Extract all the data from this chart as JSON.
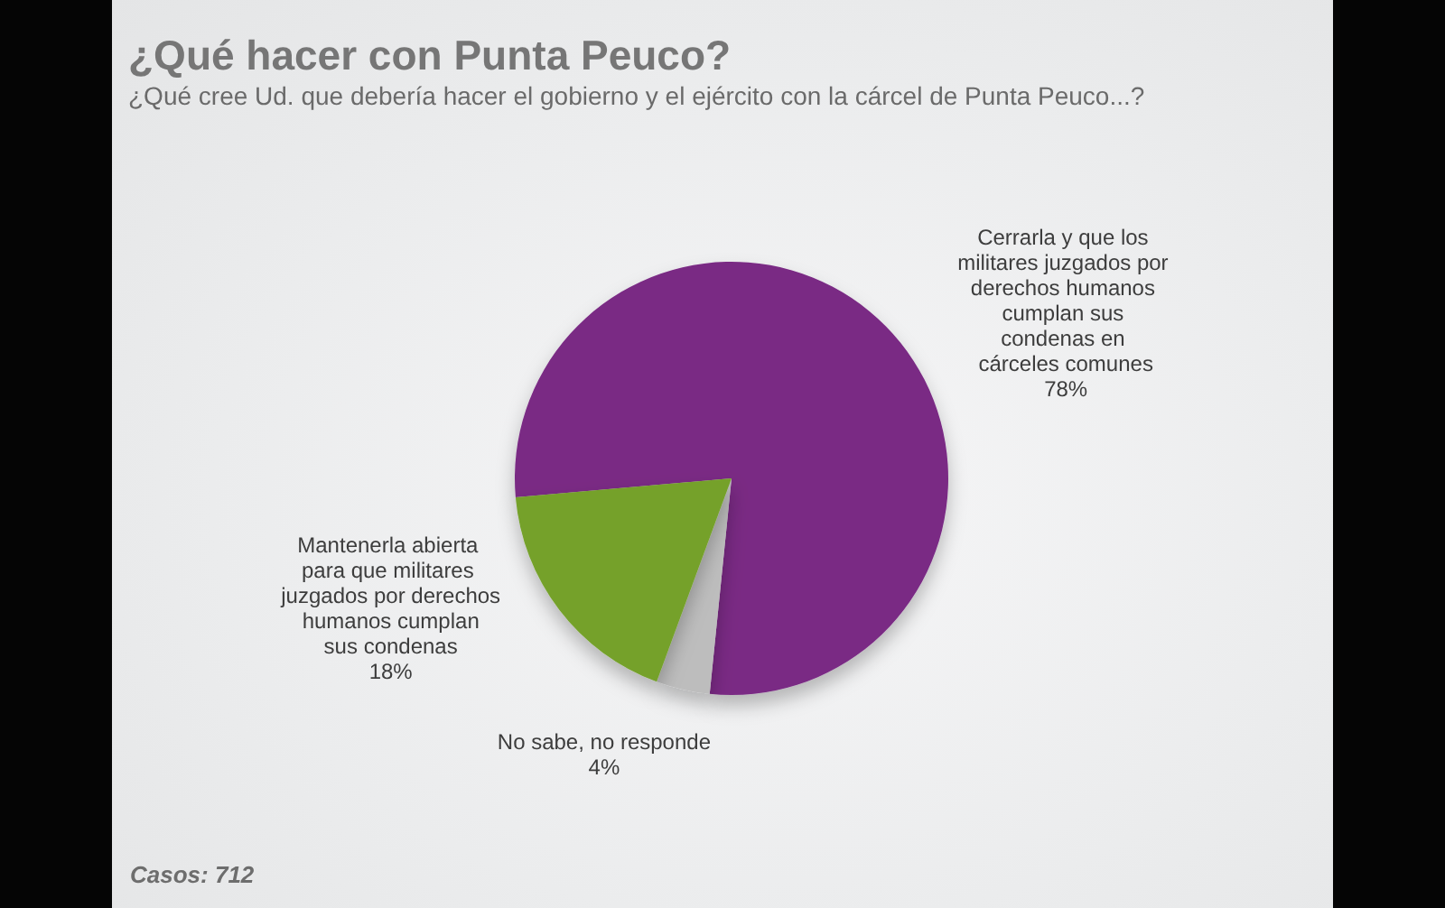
{
  "chart_data": {
    "type": "pie",
    "title": "¿Qué hacer con Punta Peuco?",
    "subtitle": "¿Qué cree Ud. que debería hacer el gobierno y el ejército con la cárcel de Punta Peuco...?",
    "categories": [
      "Cerrarla y que los militares juzgados por derechos humanos cumplan sus condenas en cárceles comunes",
      "No sabe, no responde",
      "Mantenerla abierta para que militares juzgados por derechos humanos cumplan sus condenas"
    ],
    "values": [
      78,
      4,
      18
    ],
    "colors": [
      "#7a2b84",
      "#bdbdbd",
      "#74a12a"
    ],
    "value_labels": [
      "78%",
      "4%",
      "18%"
    ],
    "annotations": [
      "Casos: 712"
    ]
  }
}
